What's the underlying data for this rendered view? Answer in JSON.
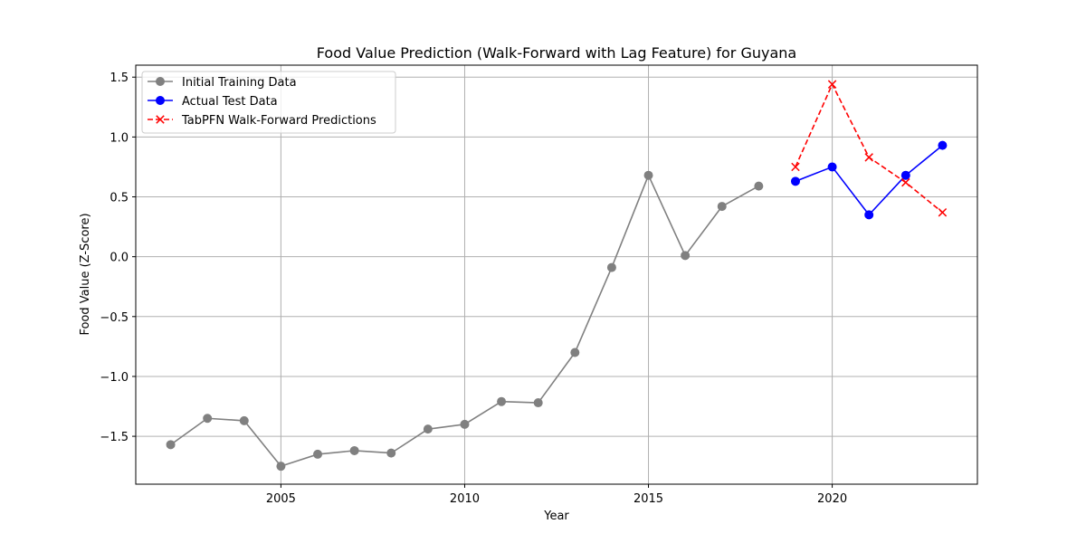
{
  "chart_data": {
    "type": "line",
    "title": "Food Value Prediction (Walk-Forward with Lag Feature) for Guyana",
    "xlabel": "Year",
    "ylabel": "Food Value (Z-Score)",
    "xlim": [
      2001.05,
      2023.95
    ],
    "ylim": [
      -1.9,
      1.6
    ],
    "grid": true,
    "legend_position": "top-left",
    "x_ticks": [
      2005,
      2010,
      2015,
      2020
    ],
    "y_ticks": [
      -1.5,
      -1.0,
      -0.5,
      0.0,
      0.5,
      1.0,
      1.5
    ],
    "x_tick_labels": [
      "2005",
      "2010",
      "2015",
      "2020"
    ],
    "y_tick_labels": [
      "−1.5",
      "−1.0",
      "−0.5",
      "0.0",
      "0.5",
      "1.0",
      "1.5"
    ],
    "series": [
      {
        "name": "Initial Training Data",
        "color": "#808080",
        "marker": "circle",
        "linestyle": "solid",
        "x": [
          2002,
          2003,
          2004,
          2005,
          2006,
          2007,
          2008,
          2009,
          2010,
          2011,
          2012,
          2013,
          2014,
          2015,
          2016,
          2017,
          2018
        ],
        "y": [
          -1.57,
          -1.35,
          -1.37,
          -1.75,
          -1.65,
          -1.62,
          -1.64,
          -1.44,
          -1.4,
          -1.21,
          -1.22,
          -0.8,
          -0.09,
          0.68,
          0.01,
          0.42,
          0.59
        ]
      },
      {
        "name": "Actual Test Data",
        "color": "#0000ff",
        "marker": "circle",
        "linestyle": "solid",
        "x": [
          2019,
          2020,
          2021,
          2022,
          2023
        ],
        "y": [
          0.63,
          0.75,
          0.35,
          0.68,
          0.93
        ]
      },
      {
        "name": "TabPFN Walk-Forward Predictions",
        "color": "#ff0000",
        "marker": "x",
        "linestyle": "dashed",
        "x": [
          2019,
          2020,
          2021,
          2022,
          2023
        ],
        "y": [
          0.75,
          1.44,
          0.83,
          0.62,
          0.37
        ]
      }
    ]
  }
}
